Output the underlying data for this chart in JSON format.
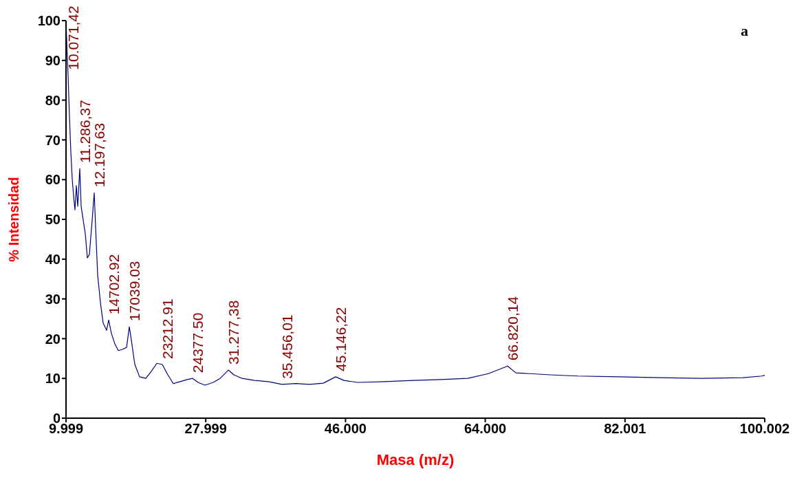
{
  "chart_data": {
    "type": "line",
    "xlabel": "Masa (m/z)",
    "ylabel": "% Intensidad",
    "xlim": [
      9999,
      100002
    ],
    "xticks": [
      {
        "value": 9999,
        "label": "9.999"
      },
      {
        "value": 27999,
        "label": "27.999"
      },
      {
        "value": 46000,
        "label": "46.000"
      },
      {
        "value": 64000,
        "label": "64.000"
      },
      {
        "value": 82001,
        "label": "82.001"
      },
      {
        "value": 100002,
        "label": "100.002"
      }
    ],
    "ylim": [
      0,
      100
    ],
    "yticks": [
      0,
      10,
      20,
      30,
      40,
      50,
      60,
      70,
      80,
      90,
      100
    ],
    "grid": false,
    "legend": false,
    "marker": "none",
    "line_style": "solid",
    "series": [
      {
        "color": "#000080",
        "x": [
          9999,
          10088,
          10265,
          10442,
          10619,
          10796,
          10973,
          11151,
          11328,
          11505,
          11771,
          11948,
          12214,
          12480,
          12745,
          13011,
          13366,
          13632,
          13809,
          14075,
          14429,
          14784,
          15227,
          15493,
          15847,
          16290,
          16733,
          17265,
          17796,
          18151,
          18417,
          18860,
          19480,
          20277,
          20986,
          21695,
          22404,
          23113,
          23822,
          24708,
          25594,
          26303,
          27011,
          27897,
          28961,
          29847,
          30910,
          31619,
          32682,
          34277,
          36049,
          37821,
          39593,
          41365,
          43137,
          44732,
          45795,
          47567,
          51111,
          54655,
          58199,
          61743,
          64401,
          66882,
          67945,
          69717,
          72375,
          75919,
          81235,
          86551,
          91867,
          97183,
          99664,
          100002
        ],
        "values": [
          100,
          94.8,
          86.2,
          75.8,
          67.1,
          60.2,
          55.9,
          52.4,
          58.5,
          53.3,
          62.8,
          53.3,
          49.8,
          46.4,
          40.3,
          41.2,
          49.8,
          56.7,
          48.1,
          36.0,
          29.1,
          23.9,
          22.1,
          24.7,
          21.3,
          18.7,
          17.0,
          17.3,
          17.8,
          23.0,
          19.6,
          13.5,
          10.4,
          10.0,
          11.8,
          13.8,
          13.5,
          10.9,
          8.7,
          9.2,
          9.7,
          10.0,
          9.0,
          8.3,
          9.0,
          10.0,
          12.1,
          10.9,
          10.0,
          9.5,
          9.2,
          8.5,
          8.7,
          8.5,
          8.8,
          10.4,
          9.5,
          9.0,
          9.2,
          9.5,
          9.7,
          10.0,
          11.2,
          13.1,
          11.4,
          11.2,
          10.9,
          10.6,
          10.4,
          10.2,
          10.0,
          10.2,
          10.6,
          10.8
        ]
      }
    ],
    "annotations": [
      {
        "text": "10.071,42",
        "x": 10265,
        "y": 86.2
      },
      {
        "text": "11.286,37",
        "x": 11771,
        "y": 62.8
      },
      {
        "text": "12.197,63",
        "x": 13632,
        "y": 56.7
      },
      {
        "text": "14702.92",
        "x": 15493,
        "y": 24.7
      },
      {
        "text": "17039.03",
        "x": 18151,
        "y": 23.0
      },
      {
        "text": "23212.91",
        "x": 22404,
        "y": 13.5
      },
      {
        "text": "24377.50",
        "x": 26303,
        "y": 10.0
      },
      {
        "text": "31.277,38",
        "x": 30910,
        "y": 12.1
      },
      {
        "text": "35.456,01",
        "x": 37821,
        "y": 8.5
      },
      {
        "text": "45.146,22",
        "x": 44732,
        "y": 10.4
      },
      {
        "text": "66.820,14",
        "x": 66882,
        "y": 13.1
      },
      "a"
    ]
  }
}
